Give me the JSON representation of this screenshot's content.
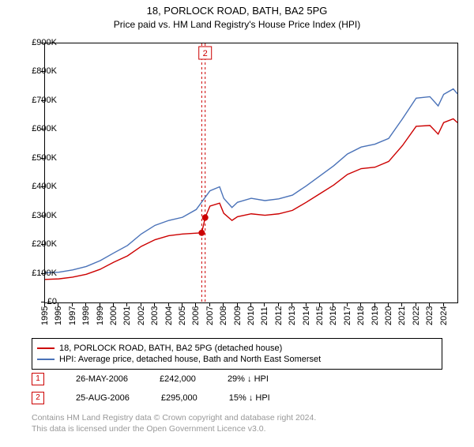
{
  "title": "18, PORLOCK ROAD, BATH, BA2 5PG",
  "subtitle": "Price paid vs. HM Land Registry's House Price Index (HPI)",
  "chart": {
    "type": "line",
    "background_color": "#ffffff",
    "border_color": "#000000",
    "line_width": 1.4,
    "ylim": [
      0,
      900000
    ],
    "ytick_step": 100000,
    "yticks": [
      "£0",
      "£100K",
      "£200K",
      "£300K",
      "£400K",
      "£500K",
      "£600K",
      "£700K",
      "£800K",
      "£900K"
    ],
    "xlim": [
      1995,
      2025
    ],
    "xticks": [
      "1995",
      "1996",
      "1997",
      "1998",
      "1999",
      "2000",
      "2001",
      "2002",
      "2003",
      "2004",
      "2005",
      "2006",
      "2007",
      "2008",
      "2009",
      "2010",
      "2011",
      "2012",
      "2013",
      "2014",
      "2015",
      "2016",
      "2017",
      "2018",
      "2019",
      "2020",
      "2021",
      "2022",
      "2023",
      "2024"
    ],
    "series": {
      "property": {
        "color": "#cc0000",
        "label": "18, PORLOCK ROAD, BATH, BA2 5PG (detached house)",
        "data": [
          [
            1995,
            80000
          ],
          [
            1996,
            82000
          ],
          [
            1997,
            88000
          ],
          [
            1998,
            98000
          ],
          [
            1999,
            115000
          ],
          [
            2000,
            140000
          ],
          [
            2001,
            162000
          ],
          [
            2002,
            195000
          ],
          [
            2003,
            218000
          ],
          [
            2004,
            232000
          ],
          [
            2005,
            238000
          ],
          [
            2006.4,
            242000
          ],
          [
            2006.65,
            295000
          ],
          [
            2007,
            335000
          ],
          [
            2007.7,
            345000
          ],
          [
            2008,
            310000
          ],
          [
            2008.6,
            285000
          ],
          [
            2009,
            298000
          ],
          [
            2010,
            308000
          ],
          [
            2011,
            303000
          ],
          [
            2012,
            308000
          ],
          [
            2013,
            320000
          ],
          [
            2014,
            348000
          ],
          [
            2015,
            378000
          ],
          [
            2016,
            408000
          ],
          [
            2017,
            445000
          ],
          [
            2018,
            465000
          ],
          [
            2019,
            470000
          ],
          [
            2020,
            490000
          ],
          [
            2021,
            545000
          ],
          [
            2022,
            612000
          ],
          [
            2023,
            615000
          ],
          [
            2023.6,
            585000
          ],
          [
            2024,
            625000
          ],
          [
            2024.7,
            638000
          ],
          [
            2025,
            625000
          ]
        ]
      },
      "hpi": {
        "color": "#4a72b8",
        "label": "HPI: Average price, detached house, Bath and North East Somerset",
        "data": [
          [
            1995,
            103000
          ],
          [
            1996,
            105000
          ],
          [
            1997,
            113000
          ],
          [
            1998,
            125000
          ],
          [
            1999,
            145000
          ],
          [
            2000,
            172000
          ],
          [
            2001,
            198000
          ],
          [
            2002,
            238000
          ],
          [
            2003,
            268000
          ],
          [
            2004,
            285000
          ],
          [
            2005,
            296000
          ],
          [
            2006,
            323000
          ],
          [
            2007,
            388000
          ],
          [
            2007.7,
            402000
          ],
          [
            2008,
            362000
          ],
          [
            2008.6,
            330000
          ],
          [
            2009,
            348000
          ],
          [
            2010,
            362000
          ],
          [
            2011,
            354000
          ],
          [
            2012,
            360000
          ],
          [
            2013,
            373000
          ],
          [
            2014,
            405000
          ],
          [
            2015,
            440000
          ],
          [
            2016,
            475000
          ],
          [
            2017,
            516000
          ],
          [
            2018,
            540000
          ],
          [
            2019,
            550000
          ],
          [
            2020,
            570000
          ],
          [
            2021,
            638000
          ],
          [
            2022,
            710000
          ],
          [
            2023,
            715000
          ],
          [
            2023.6,
            683000
          ],
          [
            2024,
            723000
          ],
          [
            2024.7,
            742000
          ],
          [
            2025,
            725000
          ]
        ]
      }
    },
    "sale_markers": [
      {
        "n": "1",
        "year": 2006.4,
        "price": 242000
      },
      {
        "n": "2",
        "year": 2006.65,
        "price": 295000
      }
    ],
    "marker_label": {
      "n": "2",
      "year": 2006.65,
      "top_y": 900000
    },
    "marker_dot_color": "#cc0000",
    "marker_dash_color": "#cc0000"
  },
  "legend": {
    "property_color": "#cc0000",
    "hpi_color": "#4a72b8"
  },
  "sales": [
    {
      "n": "1",
      "date": "26-MAY-2006",
      "price": "£242,000",
      "delta": "29% ↓ HPI"
    },
    {
      "n": "2",
      "date": "25-AUG-2006",
      "price": "£295,000",
      "delta": "15% ↓ HPI"
    }
  ],
  "footer_line1": "Contains HM Land Registry data © Crown copyright and database right 2024.",
  "footer_line2": "This data is licensed under the Open Government Licence v3.0."
}
